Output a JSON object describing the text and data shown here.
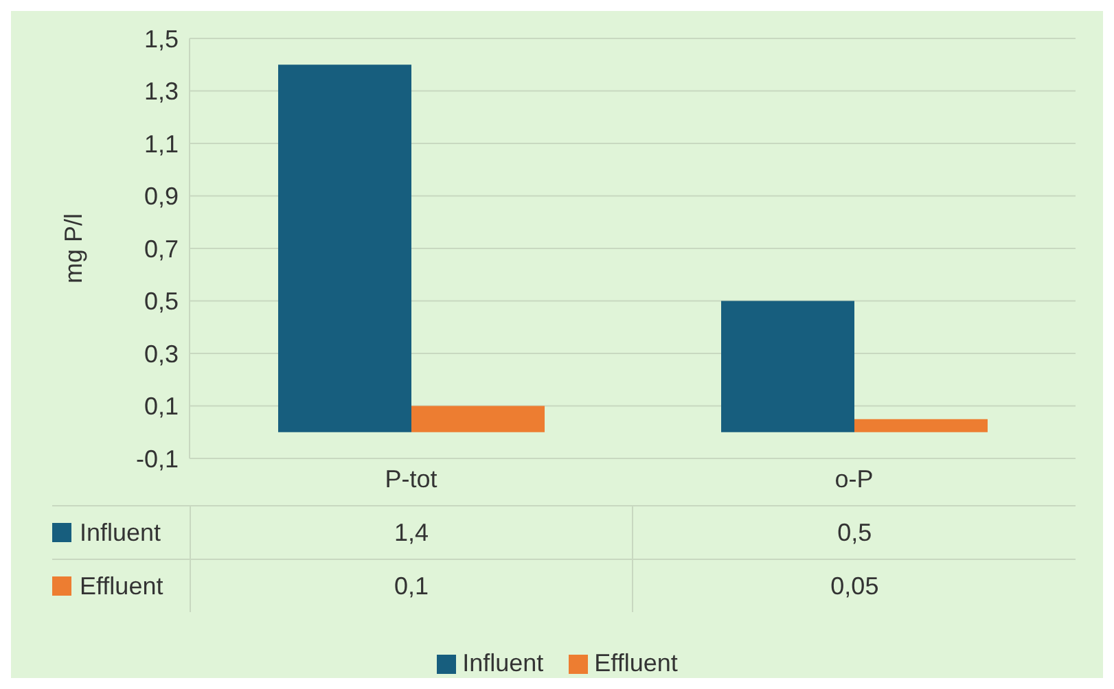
{
  "chart_data": {
    "type": "bar",
    "ylabel": "mg P/l",
    "categories": [
      "P-tot",
      "o-P"
    ],
    "series": [
      {
        "name": "Influent",
        "color": "#175e7e",
        "values": [
          1.4,
          0.5
        ],
        "value_labels": [
          "1,4",
          "0,5"
        ]
      },
      {
        "name": "Effluent",
        "color": "#ed7d31",
        "values": [
          0.1,
          0.05
        ],
        "value_labels": [
          "0,1",
          "0,05"
        ]
      }
    ],
    "ylim": [
      -0.1,
      1.5
    ],
    "yticks": [
      {
        "value": -0.1,
        "label": "-0,1"
      },
      {
        "value": 0.1,
        "label": "0,1"
      },
      {
        "value": 0.3,
        "label": "0,3"
      },
      {
        "value": 0.5,
        "label": "0,5"
      },
      {
        "value": 0.7,
        "label": "0,7"
      },
      {
        "value": 0.9,
        "label": "0,9"
      },
      {
        "value": 1.1,
        "label": "1,1"
      },
      {
        "value": 1.3,
        "label": "1,3"
      },
      {
        "value": 1.5,
        "label": "1,5"
      }
    ],
    "grid": "y",
    "legend": "bottom"
  }
}
